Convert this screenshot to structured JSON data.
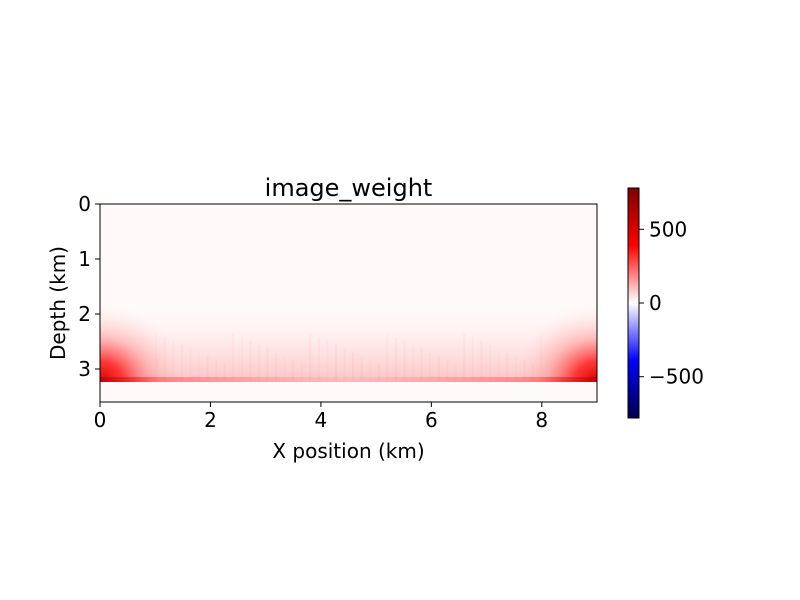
{
  "chart_data": {
    "type": "heatmap",
    "title": "image_weight",
    "xlabel": "X position (km)",
    "ylabel": "Depth (km)",
    "xlim": [
      0,
      9
    ],
    "ylim": [
      3.6,
      0
    ],
    "y_inverted": true,
    "xticks": [
      0,
      2,
      4,
      6,
      8
    ],
    "yticks": [
      0,
      1,
      2,
      3
    ],
    "xtick_labels": [
      "0",
      "2",
      "4",
      "6",
      "8"
    ],
    "ytick_labels": [
      "0",
      "1",
      "2",
      "3"
    ],
    "grid": false,
    "colormap": "seismic",
    "colorbar": {
      "vmin": -780,
      "vmax": 780,
      "ticks": [
        500,
        0,
        -500
      ],
      "tick_labels": [
        "500",
        "0",
        "−500"
      ],
      "colors": [
        "#00004c",
        "#0000ff",
        "#ffffff",
        "#ff0000",
        "#7f0000"
      ]
    },
    "features": [
      {
        "description": "strong positive band at reflector depth",
        "x_range": [
          0,
          9
        ],
        "depth": 3.22,
        "value_peak": 700
      },
      {
        "description": "high-weight corner zone left",
        "x_range": [
          0,
          1.2
        ],
        "depth_range": [
          2.1,
          3.22
        ],
        "value_peak": 600
      },
      {
        "description": "high-weight corner zone right",
        "x_range": [
          7.8,
          9
        ],
        "depth_range": [
          2.1,
          3.22
        ],
        "value_peak": 600
      }
    ]
  }
}
